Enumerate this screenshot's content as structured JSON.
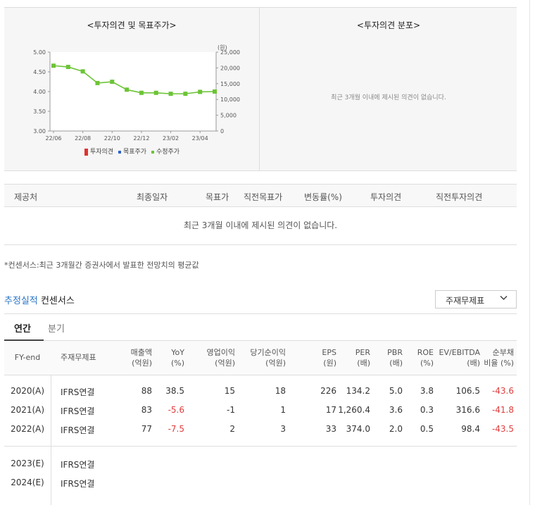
{
  "charts": {
    "left_title": "<투자의견 및 목표주가>",
    "right_title": "<투자의견 분포>",
    "right_message": "최근 3개월 이내에 제시된 의견이 없습니다.",
    "unit_label": "(원)",
    "legend": [
      {
        "label": "투자의견",
        "color": "#e0332c"
      },
      {
        "label": "목표주가",
        "color": "#2e62c8"
      },
      {
        "label": "수정주가",
        "color": "#6cc436"
      }
    ]
  },
  "chart_data": {
    "type": "line",
    "title": "<투자의견 및 목표주가>",
    "x_ticks": [
      "22/06",
      "22/08",
      "22/10",
      "22/12",
      "23/02",
      "23/04"
    ],
    "y_left_ticks": [
      "5.00",
      "4.50",
      "4.00",
      "3.50",
      "3.00"
    ],
    "y_left_lim": [
      3.0,
      5.0
    ],
    "y_right_ticks": [
      "25,000",
      "20,000",
      "15,000",
      "10,000",
      "5,000",
      "0"
    ],
    "y_right_lim": [
      0,
      25000
    ],
    "grid": false,
    "series": [
      {
        "name": "수정주가",
        "x": [
          "22/06",
          "22/07",
          "22/08",
          "22/09",
          "22/10",
          "22/11",
          "22/12",
          "23/01",
          "23/02",
          "23/03",
          "23/04",
          "23/05"
        ],
        "values": [
          20700,
          20300,
          18900,
          15200,
          15600,
          13100,
          12100,
          12100,
          11800,
          11800,
          12400,
          12500
        ]
      }
    ]
  },
  "opinion_table": {
    "headers": [
      "제공처",
      "최종일자",
      "목표가",
      "직전목표가",
      "변동률(%)",
      "투자의견",
      "직전투자의견"
    ],
    "empty_message": "최근 3개월 이내에 제시된 의견이 없습니다."
  },
  "footnote": "*컨센서스:최근 3개월간 증권사에서 발표한 전망치의 평균값",
  "section": {
    "title_accent": "추정실적",
    "title_rest": " 컨센서스",
    "dropdown_value": "주재무제표",
    "tabs": [
      "연간",
      "분기"
    ]
  },
  "fin_table": {
    "headers": {
      "fy": "FY-end",
      "type": "주재무제표",
      "sales": [
        "매출액",
        "(억원)"
      ],
      "yoy": [
        "YoY",
        "(%)"
      ],
      "op": [
        "영업이익",
        "(억원)"
      ],
      "net": [
        "당기순이익",
        "(억원)"
      ],
      "eps": [
        "EPS",
        "(원)"
      ],
      "per": [
        "PER",
        "(배)"
      ],
      "pbr": [
        "PBR",
        "(배)"
      ],
      "roe": [
        "ROE",
        "(%)"
      ],
      "ev": [
        "EV/EBITDA",
        "(배)"
      ],
      "debt": [
        "순부채",
        "비율 (%)"
      ]
    },
    "actual_rows": [
      {
        "fy": "2020(A)",
        "type": "IFRS연결",
        "sales": "88",
        "yoy": "38.5",
        "op": "15",
        "net": "18",
        "eps": "226",
        "per": "134.2",
        "pbr": "5.0",
        "roe": "3.8",
        "ev": "106.5",
        "debt": "-43.6"
      },
      {
        "fy": "2021(A)",
        "type": "IFRS연결",
        "sales": "83",
        "yoy": "-5.6",
        "op": "-1",
        "net": "1",
        "eps": "17",
        "per": "1,260.4",
        "pbr": "3.6",
        "roe": "0.3",
        "ev": "316.6",
        "debt": "-41.8"
      },
      {
        "fy": "2022(A)",
        "type": "IFRS연결",
        "sales": "77",
        "yoy": "-7.5",
        "op": "2",
        "net": "3",
        "eps": "33",
        "per": "374.0",
        "pbr": "2.0",
        "roe": "0.5",
        "ev": "98.4",
        "debt": "-43.5"
      }
    ],
    "estimate_rows": [
      {
        "fy": "2023(E)",
        "type": "IFRS연결"
      },
      {
        "fy": "2024(E)",
        "type": "IFRS연결"
      }
    ]
  }
}
